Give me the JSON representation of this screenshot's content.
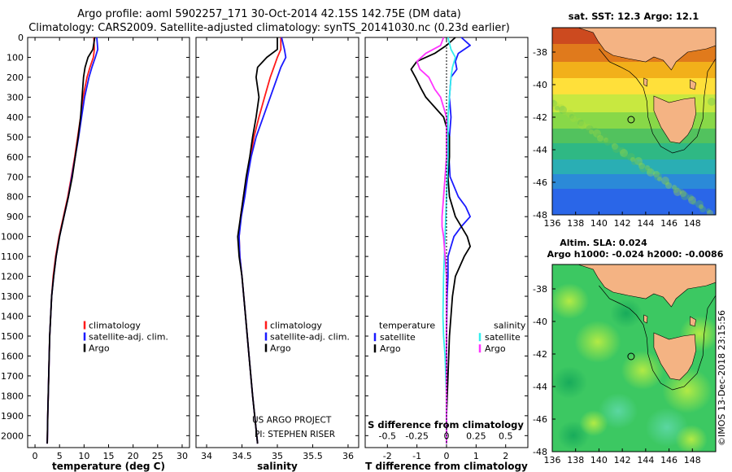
{
  "header": {
    "title_line1": "Argo profile: aoml 5902257_171 30-Oct-2014 42.15S 142.75E (DM data)",
    "title_line2": "Climatology: CARS2009. Satellite-adjusted climatology: synTS_20141030.nc (0.23d earlier)"
  },
  "colors": {
    "climatology": "#ff1a1a",
    "satellite": "#1a1aff",
    "argo": "#000000",
    "salinity_satellite": "#33eeee",
    "salinity_argo": "#ff33ff",
    "land": "#f4b383"
  },
  "depth_axis": {
    "ylim": [
      0,
      2060
    ],
    "ticks": [
      0,
      100,
      200,
      300,
      400,
      500,
      600,
      700,
      800,
      900,
      1000,
      1100,
      1200,
      1300,
      1400,
      1500,
      1600,
      1700,
      1800,
      1900,
      2000
    ]
  },
  "chart_data": [
    {
      "type": "line",
      "xlabel": "temperature (deg C)",
      "xlim": [
        -1.5,
        31.5
      ],
      "xticks": [
        0,
        5,
        10,
        15,
        20,
        25,
        30
      ],
      "legend_location": "middle",
      "legend": [
        "climatology",
        "satellite-adj. clim.",
        "Argo"
      ],
      "series": [
        {
          "name": "climatology",
          "color_key": "climatology",
          "depth": [
            0,
            60,
            100,
            150,
            200,
            300,
            400,
            500,
            600,
            700,
            800,
            900,
            1000,
            1100,
            1200,
            1300,
            1500,
            1700,
            1900,
            2040
          ],
          "values": [
            12.0,
            12.1,
            11.9,
            11.2,
            10.6,
            9.8,
            9.3,
            8.7,
            8.1,
            7.4,
            6.7,
            5.8,
            4.9,
            4.2,
            3.7,
            3.4,
            3.0,
            2.8,
            2.6,
            2.5
          ]
        },
        {
          "name": "satellite-adj. clim.",
          "color_key": "satellite",
          "depth": [
            0,
            60,
            100,
            150,
            200,
            300,
            400,
            500,
            600,
            700,
            800,
            900,
            1000,
            1100,
            1200,
            1300,
            1500,
            1700,
            1900,
            2040
          ],
          "values": [
            12.6,
            12.8,
            12.3,
            11.6,
            11.0,
            10.1,
            9.5,
            8.9,
            8.2,
            7.5,
            6.8,
            5.9,
            5.0,
            4.3,
            3.8,
            3.4,
            3.0,
            2.8,
            2.6,
            2.5
          ]
        },
        {
          "name": "Argo",
          "color_key": "argo",
          "depth": [
            0,
            60,
            100,
            150,
            200,
            300,
            400,
            500,
            600,
            700,
            800,
            900,
            1000,
            1100,
            1200,
            1300,
            1500,
            1700,
            1900,
            2040
          ],
          "values": [
            12.2,
            11.8,
            10.8,
            10.2,
            9.9,
            9.6,
            9.3,
            8.8,
            8.2,
            7.6,
            6.8,
            5.9,
            5.0,
            4.3,
            3.8,
            3.4,
            3.0,
            2.8,
            2.6,
            2.5
          ]
        }
      ]
    },
    {
      "type": "line",
      "xlabel": "salinity",
      "xlim": [
        33.85,
        36.15
      ],
      "xticks": [
        34,
        34.5,
        35,
        35.5,
        36
      ],
      "legend_location": "middle",
      "legend": [
        "climatology",
        "satellite-adj. clim.",
        "Argo"
      ],
      "annotation": [
        "US ARGO PROJECT",
        "PI: STEPHEN RISER"
      ],
      "series": [
        {
          "name": "climatology",
          "color_key": "climatology",
          "depth": [
            0,
            60,
            100,
            150,
            200,
            300,
            400,
            500,
            600,
            700,
            800,
            900,
            1000,
            1100,
            1200,
            1400,
            1600,
            1800,
            2040
          ],
          "values": [
            35.05,
            35.05,
            35.0,
            34.95,
            34.9,
            34.82,
            34.74,
            34.67,
            34.62,
            34.57,
            34.52,
            34.48,
            34.46,
            34.47,
            34.5,
            34.55,
            34.6,
            34.65,
            34.72
          ]
        },
        {
          "name": "satellite-adj. clim.",
          "color_key": "satellite",
          "depth": [
            0,
            60,
            100,
            150,
            200,
            300,
            400,
            500,
            600,
            700,
            800,
            900,
            1000,
            1100,
            1200,
            1400,
            1600,
            1800,
            2040
          ],
          "values": [
            35.06,
            35.1,
            35.12,
            35.05,
            35.0,
            34.9,
            34.8,
            34.7,
            34.63,
            34.58,
            34.54,
            34.49,
            34.46,
            34.47,
            34.5,
            34.55,
            34.6,
            34.65,
            34.72
          ]
        },
        {
          "name": "Argo",
          "color_key": "argo",
          "depth": [
            0,
            60,
            100,
            150,
            200,
            300,
            400,
            500,
            600,
            700,
            800,
            900,
            1000,
            1100,
            1200,
            1400,
            1600,
            1800,
            2040
          ],
          "values": [
            35.0,
            35.0,
            34.85,
            34.72,
            34.7,
            34.74,
            34.7,
            34.65,
            34.61,
            34.56,
            34.52,
            34.48,
            34.44,
            34.46,
            34.5,
            34.55,
            34.6,
            34.65,
            34.72
          ]
        }
      ]
    },
    {
      "type": "line",
      "xlabel": "T difference from climatology",
      "xlabel_top": "S difference from climatology",
      "xlim": [
        -2.75,
        2.75
      ],
      "xticks": [
        -2,
        -1,
        0,
        1,
        2
      ],
      "xticks_top_labels": [
        "-0.5",
        "-0.25",
        "0",
        "0.25",
        "0.5"
      ],
      "xticks_top_values": [
        -2,
        -1,
        0,
        1,
        2
      ],
      "legend_left_title": "temperature",
      "legend_left": [
        "satellite",
        "Argo"
      ],
      "legend_right_title": "salinity",
      "legend_right": [
        "satellite",
        "Argo"
      ],
      "series": [
        {
          "name": "temperature satellite",
          "color_key": "satellite",
          "depth": [
            0,
            40,
            80,
            120,
            160,
            200,
            300,
            400,
            500,
            600,
            700,
            800,
            850,
            900,
            950,
            1000,
            1100,
            1200,
            1300,
            1500,
            1700,
            1900,
            2040
          ],
          "values": [
            0.5,
            0.8,
            0.4,
            0.3,
            0.35,
            0.15,
            0.1,
            0.15,
            0.1,
            0.08,
            0.12,
            0.4,
            0.65,
            0.8,
            0.5,
            0.25,
            0.05,
            0.05,
            0.02,
            0.0,
            0.0,
            0.0,
            0.0
          ]
        },
        {
          "name": "temperature Argo",
          "color_key": "argo",
          "depth": [
            0,
            40,
            80,
            120,
            160,
            200,
            260,
            300,
            400,
            500,
            600,
            700,
            800,
            900,
            950,
            1000,
            1050,
            1100,
            1200,
            1300,
            1500,
            1700,
            1900,
            2040
          ],
          "values": [
            0.3,
            0.0,
            -0.4,
            -1.0,
            -1.2,
            -1.05,
            -0.85,
            -0.7,
            -0.1,
            0.1,
            0.1,
            0.05,
            0.1,
            0.3,
            0.5,
            0.7,
            0.8,
            0.6,
            0.3,
            0.2,
            0.1,
            0.05,
            0.0,
            0.0
          ]
        },
        {
          "name": "salinity satellite",
          "color_key": "salinity_satellite",
          "depth": [
            0,
            60,
            100,
            150,
            200,
            300,
            400,
            500,
            600,
            800,
            1000,
            1200,
            1400,
            1500,
            1600,
            1800,
            2040
          ],
          "values": [
            0.05,
            0.15,
            0.3,
            0.2,
            0.15,
            0.1,
            0.05,
            0.05,
            0.05,
            0.0,
            -0.05,
            -0.1,
            -0.12,
            -0.1,
            -0.05,
            0.0,
            0.0
          ]
        },
        {
          "name": "salinity Argo",
          "color_key": "salinity_argo",
          "depth": [
            0,
            40,
            80,
            120,
            160,
            200,
            260,
            300,
            400,
            500,
            600,
            700,
            800,
            900,
            950,
            1000,
            1100,
            1200,
            1400,
            1600,
            1800,
            2040
          ],
          "values": [
            -0.1,
            -0.2,
            -0.7,
            -1.0,
            -0.9,
            -0.6,
            -0.4,
            -0.2,
            0.0,
            0.0,
            0.0,
            -0.05,
            -0.1,
            -0.15,
            -0.15,
            -0.1,
            -0.05,
            0.0,
            0.0,
            0.0,
            0.0,
            0.0
          ]
        }
      ]
    },
    {
      "type": "heatmap",
      "title": "sat. SST: 12.3 Argo: 12.1",
      "xlim": [
        136,
        150
      ],
      "ylim": [
        -48,
        -36.5
      ],
      "xticks": [
        136,
        138,
        140,
        142,
        144,
        146,
        148
      ],
      "yticks": [
        -38,
        -40,
        -42,
        -44,
        -46,
        -48
      ],
      "marker": {
        "lon": 142.75,
        "lat": -42.15
      }
    },
    {
      "type": "heatmap",
      "title_line1": "Altim. SLA: 0.024",
      "title_line2": "Argo h1000: -0.024 h2000: -0.0086",
      "xlim": [
        136,
        150
      ],
      "ylim": [
        -48,
        -36.5
      ],
      "xticks": [
        136,
        138,
        140,
        142,
        144,
        146,
        148
      ],
      "yticks": [
        -38,
        -40,
        -42,
        -44,
        -46,
        -48
      ],
      "marker": {
        "lon": 142.75,
        "lat": -42.15
      }
    }
  ],
  "side_stamp": "©IMOS 13-Dec-2018 23:15:56"
}
